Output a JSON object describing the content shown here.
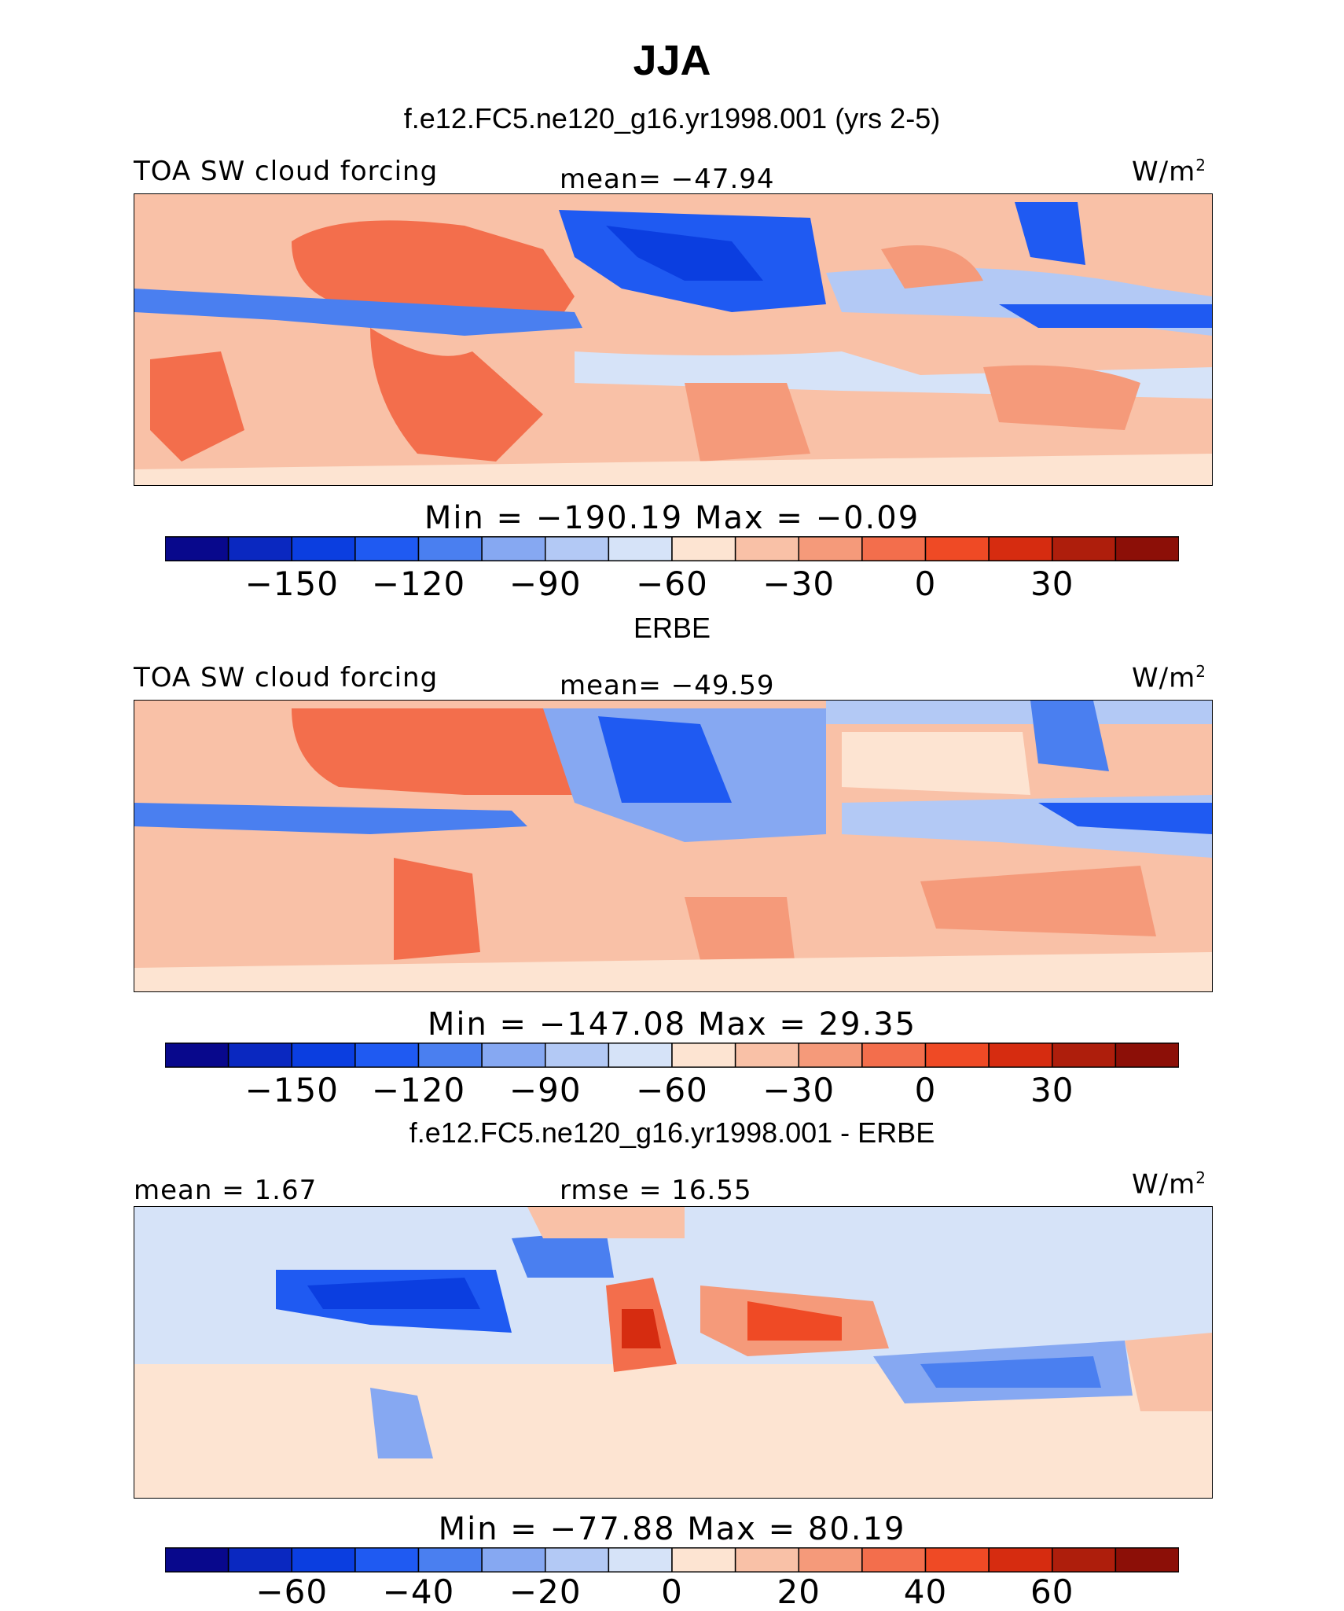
{
  "chart_data": {
    "type": "heatmap",
    "title": "JJA",
    "subtitle": "f.e12.FC5.ne120_g16.yr1998.001 (yrs 2-5)",
    "panels": [
      {
        "id": "model",
        "heading": "",
        "left_label": "TOA SW cloud forcing",
        "center_label": "mean= −47.94",
        "right_label": "W/m",
        "right_label_sup": "2",
        "stats": "Min  =  −190.19  Max  =    −0.09",
        "colorbar": {
          "levels": [
            -165,
            -150,
            -135,
            -120,
            -105,
            -90,
            -75,
            -60,
            -45,
            -30,
            -15,
            0,
            15,
            30,
            45
          ],
          "tick_labels": [
            "−150",
            "−120",
            "−90",
            "−60",
            "−30",
            "0",
            "30"
          ],
          "tick_positions": [
            1,
            3,
            5,
            7,
            9,
            11,
            13
          ],
          "colors": [
            "#08088c",
            "#0a28c0",
            "#0b3ee0",
            "#1f5af2",
            "#4a7ff0",
            "#86a8f2",
            "#b3c9f5",
            "#d6e3f8",
            "#fde4d2",
            "#f9c1a7",
            "#f59a7a",
            "#f36e4c",
            "#ef4a25",
            "#d62c10",
            "#ae1e0c",
            "#8c0f07"
          ]
        }
      },
      {
        "id": "obs",
        "heading": "ERBE",
        "left_label": "TOA SW cloud forcing",
        "center_label": "mean= −49.59",
        "right_label": "W/m",
        "right_label_sup": "2",
        "stats": "Min  =  −147.08  Max  =    29.35",
        "colorbar": {
          "levels": [
            -165,
            -150,
            -135,
            -120,
            -105,
            -90,
            -75,
            -60,
            -45,
            -30,
            -15,
            0,
            15,
            30,
            45
          ],
          "tick_labels": [
            "−150",
            "−120",
            "−90",
            "−60",
            "−30",
            "0",
            "30"
          ],
          "tick_positions": [
            1,
            3,
            5,
            7,
            9,
            11,
            13
          ],
          "colors": [
            "#08088c",
            "#0a28c0",
            "#0b3ee0",
            "#1f5af2",
            "#4a7ff0",
            "#86a8f2",
            "#b3c9f5",
            "#d6e3f8",
            "#fde4d2",
            "#f9c1a7",
            "#f59a7a",
            "#f36e4c",
            "#ef4a25",
            "#d62c10",
            "#ae1e0c",
            "#8c0f07"
          ]
        }
      },
      {
        "id": "diff",
        "heading": "f.e12.FC5.ne120_g16.yr1998.001 - ERBE",
        "left_label": "mean =    1.67",
        "center_label": "rmse  =   16.55",
        "right_label": "W/m",
        "right_label_sup": "2",
        "stats": "Min  =  −77.88  Max  =    80.19",
        "colorbar": {
          "levels": [
            -70,
            -60,
            -50,
            -40,
            -30,
            -20,
            -10,
            0,
            10,
            20,
            30,
            40,
            50,
            60,
            70
          ],
          "tick_labels": [
            "−60",
            "−40",
            "−20",
            "0",
            "20",
            "40",
            "60"
          ],
          "tick_positions": [
            1,
            3,
            5,
            7,
            9,
            11,
            13
          ],
          "colors": [
            "#08088c",
            "#0a28c0",
            "#0b3ee0",
            "#1f5af2",
            "#4a7ff0",
            "#86a8f2",
            "#b3c9f5",
            "#d6e3f8",
            "#fde4d2",
            "#f9c1a7",
            "#f59a7a",
            "#f36e4c",
            "#ef4a25",
            "#d62c10",
            "#ae1e0c",
            "#8c0f07"
          ]
        }
      }
    ]
  }
}
